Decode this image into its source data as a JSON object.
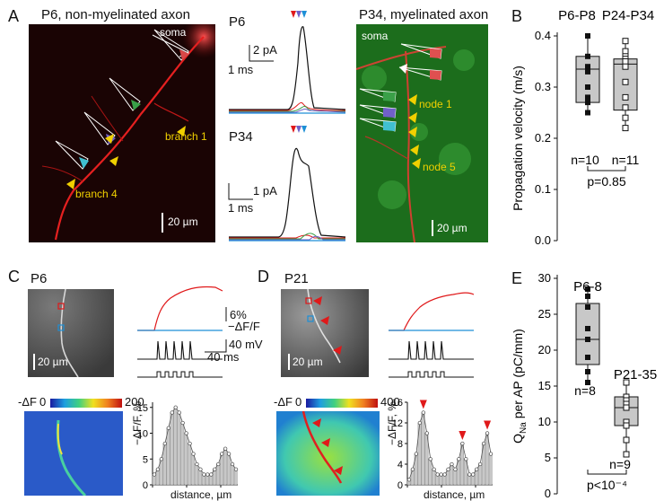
{
  "panel_letters": {
    "a": "A",
    "b": "B",
    "c": "C",
    "d": "D",
    "e": "E"
  },
  "panel_a": {
    "left_title": "P6, non-myelinated axon",
    "right_title": "P34, myelinated axon",
    "soma_left": "soma",
    "soma_right": "soma",
    "branch1": "branch 1",
    "branch4": "branch 4",
    "node1": "node 1",
    "node5": "node 5",
    "scale_left": "20 µm",
    "scale_right": "20 µm",
    "trace_top_label": "P6",
    "trace_bottom_label": "P34",
    "trace_top_ybar": "2 pA",
    "trace_top_xbar": "1 ms",
    "trace_bottom_ybar": "1 pA",
    "trace_bottom_xbar": "1 ms"
  },
  "panel_c": {
    "age": "P6",
    "scale": "20 µm",
    "df_bar": "6%",
    "df_unit": "−ΔF/F",
    "v_bar": "40 mV",
    "t_bar": "40 ms",
    "cmap_label": "-ΔF",
    "cmap_min": "0",
    "cmap_max": "200",
    "hist_ylabel": "−ΔF/F, %",
    "hist_xlabel": "distance, µm",
    "hist_yticks": [
      "0",
      "5",
      "10",
      "15"
    ],
    "hist_xticks": [
      "0",
      "40",
      "80"
    ]
  },
  "panel_d": {
    "age": "P21",
    "scale": "20 µm",
    "cmap_label": "-ΔF",
    "cmap_min": "0",
    "cmap_max": "400",
    "hist_ylabel": "−ΔF/F, %",
    "hist_xlabel": "distance, µm",
    "hist_yticks": [
      "0",
      "4",
      "8",
      "12",
      "16"
    ],
    "hist_xticks": [
      "0",
      "40",
      "80"
    ]
  },
  "chart_data": [
    {
      "type": "box",
      "panel": "B",
      "ylabel": "Propagation velocity (m/s)",
      "ylim": [
        0.0,
        0.4
      ],
      "yticks": [
        "0.0",
        "0.1",
        "0.2",
        "0.3",
        "0.4"
      ],
      "categories": [
        "P6-P8",
        "P24-P34"
      ],
      "groups": [
        {
          "name": "P6-P8",
          "n_label": "n=10",
          "q1": 0.27,
          "median": 0.335,
          "q3": 0.36,
          "min": 0.25,
          "max": 0.4,
          "points": [
            0.4,
            0.36,
            0.34,
            0.335,
            0.33,
            0.3,
            0.28,
            0.27,
            0.25,
            0.25
          ]
        },
        {
          "name": "P24-P34",
          "n_label": "n=11",
          "q1": 0.255,
          "median": 0.345,
          "q3": 0.355,
          "min": 0.22,
          "max": 0.39,
          "points": [
            0.39,
            0.37,
            0.36,
            0.355,
            0.35,
            0.34,
            0.31,
            0.28,
            0.26,
            0.24,
            0.22
          ]
        }
      ],
      "p_label": "p=0.85"
    },
    {
      "type": "box",
      "panel": "E",
      "ylabel": "Q_Na per AP (pC/mm)",
      "ylim": [
        0,
        30
      ],
      "yticks": [
        "0",
        "5",
        "10",
        "15",
        "20",
        "25",
        "30"
      ],
      "categories": [
        "P6-8",
        "P21-35"
      ],
      "groups": [
        {
          "name": "P6-8",
          "n_label": "n=8",
          "q1": 18,
          "median": 21.5,
          "q3": 26.5,
          "min": 15.5,
          "max": 28.5,
          "points": [
            28.5,
            27.5,
            26,
            23,
            21.5,
            19,
            17,
            15.5
          ]
        },
        {
          "name": "P21-35",
          "n_label": "n=9",
          "q1": 9.5,
          "median": 12,
          "q3": 13.5,
          "min": 5.5,
          "max": 15.5,
          "points": [
            15.5,
            13.5,
            13,
            12.5,
            12,
            10,
            9.5,
            7.5,
            5.5
          ]
        }
      ],
      "p_label": "p<10⁻⁴"
    }
  ],
  "colors": {
    "axon": "#e01515",
    "myelin_bg": "#1d8a1d",
    "red": "#e0191a",
    "blue": "#1d8fd6",
    "bar": "#c8c8c8"
  }
}
